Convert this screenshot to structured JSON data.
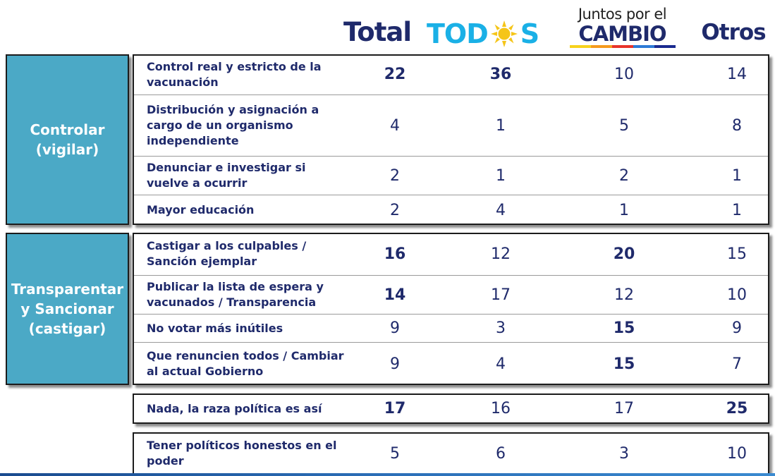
{
  "chart_data": {
    "type": "table",
    "columns": [
      "Total",
      "TODOS",
      "Juntos por el CAMBIO",
      "Otros"
    ],
    "header_logos": {
      "todos": {
        "text_left": "TOD",
        "text_right": "S"
      },
      "juntos": {
        "line1": "Juntos por el",
        "line2": "CAMBIO"
      }
    },
    "groups": [
      {
        "label": "Controlar\n(vigilar)",
        "rows": [
          {
            "label": "Control real y estricto de la vacunación",
            "values": [
              22,
              36,
              10,
              14
            ],
            "bold": [
              true,
              true,
              false,
              false
            ]
          },
          {
            "label": "Distribución y asignación a cargo de un organismo independiente",
            "values": [
              4,
              1,
              5,
              8
            ],
            "bold": [
              false,
              false,
              false,
              false
            ]
          },
          {
            "label": "Denunciar e investigar si vuelve a ocurrir",
            "values": [
              2,
              1,
              2,
              1
            ],
            "bold": [
              false,
              false,
              false,
              false
            ]
          },
          {
            "label": "Mayor educación",
            "values": [
              2,
              4,
              1,
              1
            ],
            "bold": [
              false,
              false,
              false,
              false
            ]
          }
        ]
      },
      {
        "label": "Transparentar\ny Sancionar\n(castigar)",
        "rows": [
          {
            "label": "Castigar a los culpables / Sanción ejemplar",
            "values": [
              16,
              12,
              20,
              15
            ],
            "bold": [
              true,
              false,
              true,
              false
            ]
          },
          {
            "label": "Publicar la lista de espera y vacunados / Transparencia",
            "values": [
              14,
              17,
              12,
              10
            ],
            "bold": [
              true,
              false,
              false,
              false
            ]
          },
          {
            "label": "No votar más inútiles",
            "values": [
              9,
              3,
              15,
              9
            ],
            "bold": [
              false,
              false,
              true,
              false
            ]
          },
          {
            "label": "Que renuncien todos / Cambiar al actual Gobierno",
            "values": [
              9,
              4,
              15,
              7
            ],
            "bold": [
              false,
              false,
              true,
              false
            ]
          }
        ]
      },
      {
        "label": "",
        "rows": [
          {
            "label": "Nada, la raza política es así",
            "values": [
              17,
              16,
              17,
              25
            ],
            "bold": [
              true,
              false,
              false,
              true
            ]
          }
        ]
      },
      {
        "label": "",
        "rows": [
          {
            "label": "Tener políticos honestos en el  poder",
            "values": [
              5,
              6,
              3,
              10
            ],
            "bold": [
              false,
              false,
              false,
              false
            ]
          }
        ]
      }
    ],
    "colors": {
      "group_label_bg": "#4ba9c6",
      "text": "#1f2a6b",
      "todos_blue": "#1ab0e6",
      "todos_sun": "#f5c518"
    }
  }
}
